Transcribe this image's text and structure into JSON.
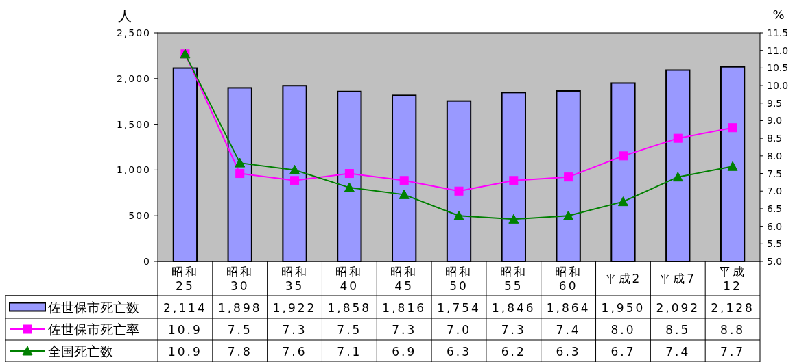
{
  "chart_data": {
    "type": "bar",
    "categories": [
      "昭和 25",
      "昭和 30",
      "昭和 35",
      "昭和 40",
      "昭和 45",
      "昭和 50",
      "昭和 55",
      "昭和 60",
      "平成2",
      "平成7",
      "平成 12"
    ],
    "ylabel": "人",
    "y2label": "%",
    "ylim": [
      0,
      2500
    ],
    "yticks": [
      {
        "value": 0,
        "label": "0"
      },
      {
        "value": 500,
        "label": "500"
      },
      {
        "value": 1000,
        "label": "1,000"
      },
      {
        "value": 1500,
        "label": "1,500"
      },
      {
        "value": 2000,
        "label": "2,000"
      },
      {
        "value": 2500,
        "label": "2,500"
      }
    ],
    "y2lim": [
      5.0,
      11.5
    ],
    "y2ticks": [
      {
        "value": 5.0,
        "label": "5.0"
      },
      {
        "value": 5.5,
        "label": "5.5"
      },
      {
        "value": 6.0,
        "label": "6.0"
      },
      {
        "value": 6.5,
        "label": "6.5"
      },
      {
        "value": 7.0,
        "label": "7.0"
      },
      {
        "value": 7.5,
        "label": "7.5"
      },
      {
        "value": 8.0,
        "label": "8.0"
      },
      {
        "value": 8.5,
        "label": "8.5"
      },
      {
        "value": 9.0,
        "label": "9.0"
      },
      {
        "value": 9.5,
        "label": "9.5"
      },
      {
        "value": 10.0,
        "label": "10.0"
      },
      {
        "value": 10.5,
        "label": "10.5"
      },
      {
        "value": 11.0,
        "label": "11.0"
      },
      {
        "value": 11.5,
        "label": "11.5"
      }
    ],
    "series": [
      {
        "name": "佐世保市死亡数",
        "color": "#9999ff",
        "values": [
          2114,
          1898,
          1922,
          1858,
          1816,
          1754,
          1846,
          1864,
          1950,
          2092,
          2128
        ],
        "value_labels": [
          "2,114",
          "1,898",
          "1,922",
          "1,858",
          "1,816",
          "1,754",
          "1,846",
          "1,864",
          "1,950",
          "2,092",
          "2,128"
        ]
      },
      {
        "name": "佐世保市死亡率",
        "type": "line",
        "axis": "y2",
        "marker": "square",
        "color": "#ff00ff",
        "values": [
          10.9,
          7.5,
          7.3,
          7.5,
          7.3,
          7.0,
          7.3,
          7.4,
          8.0,
          8.5,
          8.8
        ],
        "value_labels": [
          "10.9",
          "7.5",
          "7.3",
          "7.5",
          "7.3",
          "7.0",
          "7.3",
          "7.4",
          "8.0",
          "8.5",
          "8.8"
        ]
      },
      {
        "name": "全国死亡数",
        "type": "line",
        "axis": "y2",
        "marker": "triangle",
        "color": "#008000",
        "values": [
          10.9,
          7.8,
          7.6,
          7.1,
          6.9,
          6.3,
          6.2,
          6.3,
          6.7,
          7.4,
          7.7
        ],
        "value_labels": [
          "10.9",
          "7.8",
          "7.6",
          "7.1",
          "6.9",
          "6.3",
          "6.2",
          "6.3",
          "6.7",
          "7.4",
          "7.7"
        ]
      }
    ],
    "legend": "bottom left",
    "grid": false
  }
}
